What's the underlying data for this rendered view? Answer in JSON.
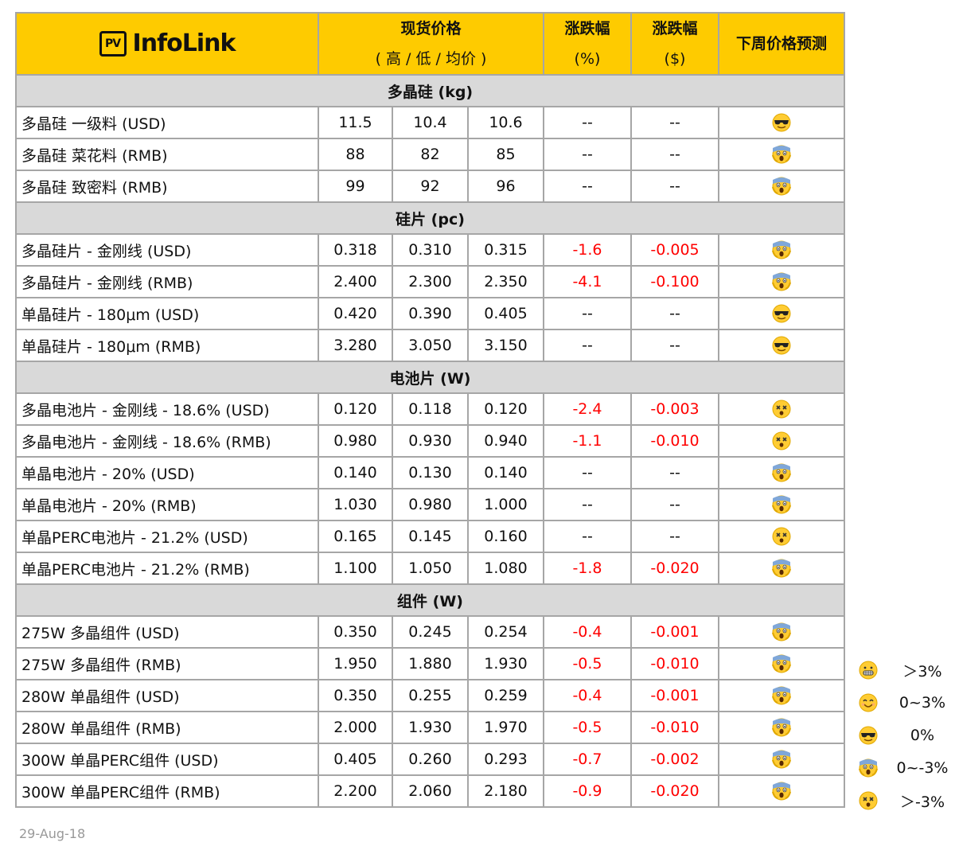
{
  "header": {
    "logo_pv": "PV",
    "logo_text": "InfoLink",
    "col_price_line1": "现货价格",
    "col_price_line2": "( 高 / 低 / 均价 )",
    "col_pct_line1": "涨跌幅",
    "col_pct_line2": "(%)",
    "col_abs_line1": "涨跌幅",
    "col_abs_line2": "($)",
    "col_forecast": "下周价格预测"
  },
  "sections": [
    {
      "title": "多晶硅  (kg)",
      "rows": [
        {
          "name": "多晶硅 一级料 (USD)",
          "high": "11.5",
          "low": "10.4",
          "avg": "10.6",
          "pct": "--",
          "abs": "--",
          "forecast": "cool"
        },
        {
          "name": "多晶硅 菜花料 (RMB)",
          "high": "88",
          "low": "82",
          "avg": "85",
          "pct": "--",
          "abs": "--",
          "forecast": "scream"
        },
        {
          "name": "多晶硅 致密料 (RMB)",
          "high": "99",
          "low": "92",
          "avg": "96",
          "pct": "--",
          "abs": "--",
          "forecast": "scream"
        }
      ]
    },
    {
      "title": "硅片  (pc)",
      "rows": [
        {
          "name": "多晶硅片 - 金刚线 (USD)",
          "high": "0.318",
          "low": "0.310",
          "avg": "0.315",
          "pct": "-1.6",
          "abs": "-0.005",
          "forecast": "scream"
        },
        {
          "name": "多晶硅片 - 金刚线 (RMB)",
          "high": "2.400",
          "low": "2.300",
          "avg": "2.350",
          "pct": "-4.1",
          "abs": "-0.100",
          "forecast": "scream"
        },
        {
          "name": "单晶硅片 - 180μm (USD)",
          "high": "0.420",
          "low": "0.390",
          "avg": "0.405",
          "pct": "--",
          "abs": "--",
          "forecast": "cool"
        },
        {
          "name": "单晶硅片 - 180μm (RMB)",
          "high": "3.280",
          "low": "3.050",
          "avg": "3.150",
          "pct": "--",
          "abs": "--",
          "forecast": "cool"
        }
      ]
    },
    {
      "title": "电池片 (W)",
      "rows": [
        {
          "name": "多晶电池片 - 金刚线 - 18.6% (USD)",
          "high": "0.120",
          "low": "0.118",
          "avg": "0.120",
          "pct": "-2.4",
          "abs": "-0.003",
          "forecast": "dizzy"
        },
        {
          "name": "多晶电池片 - 金刚线 - 18.6% (RMB)",
          "high": "0.980",
          "low": "0.930",
          "avg": "0.940",
          "pct": "-1.1",
          "abs": "-0.010",
          "forecast": "dizzy"
        },
        {
          "name": "单晶电池片 - 20% (USD)",
          "high": "0.140",
          "low": "0.130",
          "avg": "0.140",
          "pct": "--",
          "abs": "--",
          "forecast": "scream"
        },
        {
          "name": "单晶电池片 - 20% (RMB)",
          "high": "1.030",
          "low": "0.980",
          "avg": "1.000",
          "pct": "--",
          "abs": "--",
          "forecast": "scream"
        },
        {
          "name": "单晶PERC电池片 - 21.2% (USD)",
          "high": "0.165",
          "low": "0.145",
          "avg": "0.160",
          "pct": "--",
          "abs": "--",
          "forecast": "dizzy"
        },
        {
          "name": "单晶PERC电池片 - 21.2% (RMB)",
          "high": "1.100",
          "low": "1.050",
          "avg": "1.080",
          "pct": "-1.8",
          "abs": "-0.020",
          "forecast": "scream"
        }
      ]
    },
    {
      "title": "组件 (W)",
      "rows": [
        {
          "name": "275W 多晶组件 (USD)",
          "high": "0.350",
          "low": "0.245",
          "avg": "0.254",
          "pct": "-0.4",
          "abs": "-0.001",
          "forecast": "scream"
        },
        {
          "name": "275W 多晶组件 (RMB)",
          "high": "1.950",
          "low": "1.880",
          "avg": "1.930",
          "pct": "-0.5",
          "abs": "-0.010",
          "forecast": "scream"
        },
        {
          "name": "280W 单晶组件 (USD)",
          "high": "0.350",
          "low": "0.255",
          "avg": "0.259",
          "pct": "-0.4",
          "abs": "-0.001",
          "forecast": "scream"
        },
        {
          "name": "280W 单晶组件 (RMB)",
          "high": "2.000",
          "low": "1.930",
          "avg": "1.970",
          "pct": "-0.5",
          "abs": "-0.010",
          "forecast": "scream"
        },
        {
          "name": "300W 单晶PERC组件 (USD)",
          "high": "0.405",
          "low": "0.260",
          "avg": "0.293",
          "pct": "-0.7",
          "abs": "-0.002",
          "forecast": "scream"
        },
        {
          "name": "300W 单晶PERC组件 (RMB)",
          "high": "2.200",
          "low": "2.060",
          "avg": "2.180",
          "pct": "-0.9",
          "abs": "-0.020",
          "forecast": "scream"
        }
      ]
    }
  ],
  "legend": [
    {
      "icon": "grin",
      "label": "＞3%"
    },
    {
      "icon": "smile",
      "label": "0~3%"
    },
    {
      "icon": "cool",
      "label": "0%"
    },
    {
      "icon": "scream",
      "label": "0~-3%"
    },
    {
      "icon": "dizzy",
      "label": "＞-3%"
    }
  ],
  "footer": {
    "date": "29-Aug-18"
  },
  "colors": {
    "header_bg": "#fecb00",
    "section_bg": "#d9d9d9",
    "negative": "#ff0000",
    "border": "#a6a6a6"
  }
}
